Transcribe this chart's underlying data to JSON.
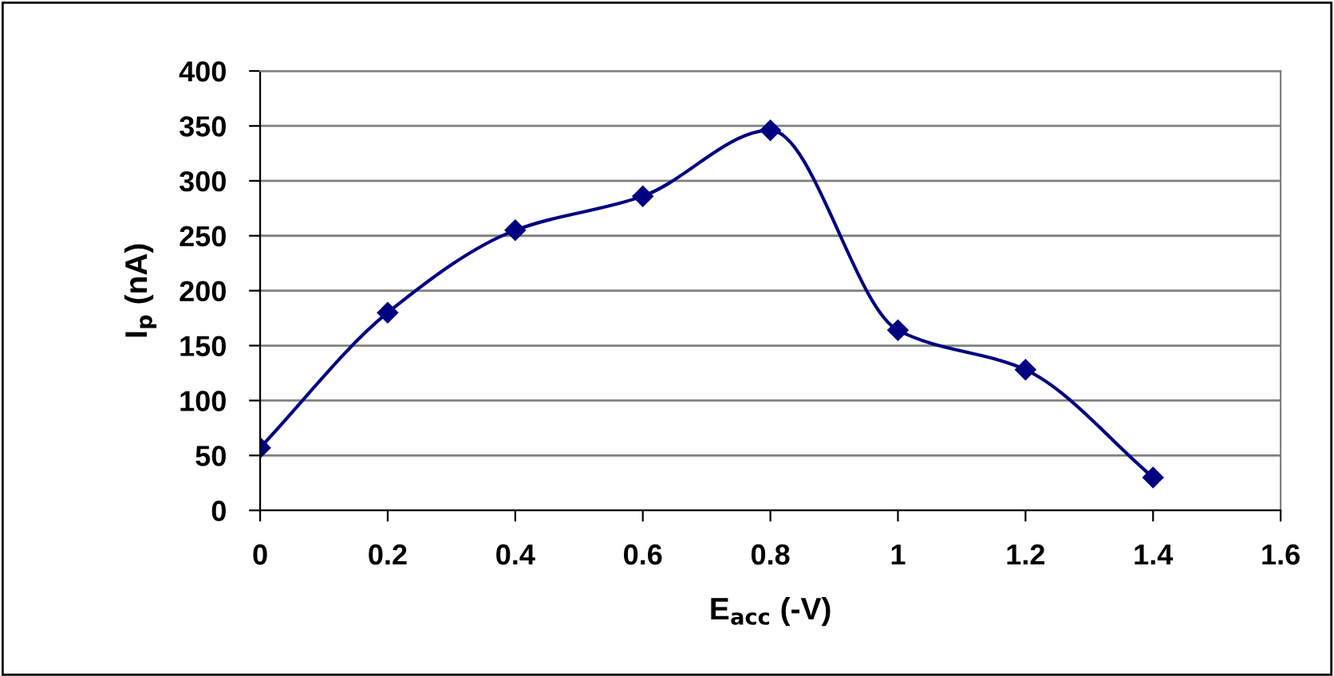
{
  "chart_data": {
    "type": "line",
    "xlabel": "E$_{acc}$ (-V)",
    "ylabel": "I$_{p}$ (nA)",
    "x": [
      0,
      0.2,
      0.4,
      0.6,
      0.8,
      1,
      1.2,
      1.4
    ],
    "series": [
      {
        "color": "#000080",
        "values": [
          57,
          180,
          255,
          286,
          346,
          164,
          128,
          30
        ]
      }
    ],
    "xlim": [
      0,
      1.6
    ],
    "xticks": [
      0,
      0.2,
      0.4,
      0.6,
      0.8,
      1,
      1.2,
      1.4,
      1.6
    ],
    "ylim": [
      0,
      400
    ],
    "yticks": [
      0,
      50,
      100,
      150,
      200,
      250,
      300,
      350,
      400
    ],
    "grid": "y",
    "marker": "diamond",
    "line_style": "solid",
    "legend": false
  }
}
